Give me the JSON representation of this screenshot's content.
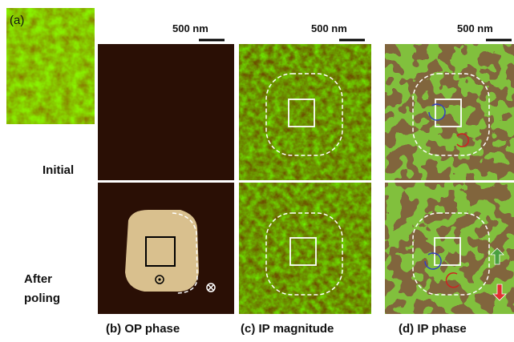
{
  "figure": {
    "panel_a_label": "(a)",
    "scale_bars": [
      "500 nm",
      "500 nm",
      "500 nm"
    ],
    "row_labels": [
      "Initial",
      "After poling"
    ],
    "captions": [
      "(b) OP phase",
      "(c) IP magnitude",
      "(d) IP phase"
    ]
  }
}
